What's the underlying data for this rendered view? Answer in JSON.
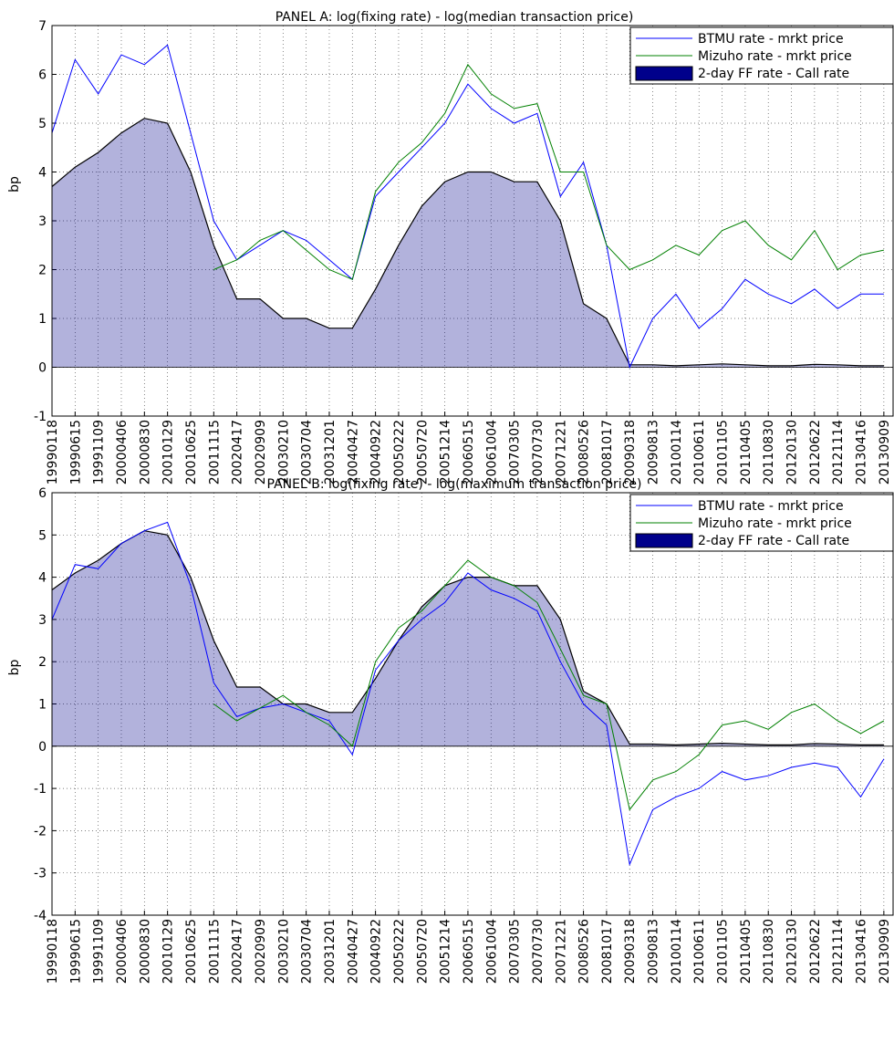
{
  "chart_data": [
    {
      "type": "line",
      "title": "PANEL A:  log(fixing rate) - log(median transaction price)",
      "ylabel": "bp",
      "categories": [
        "19990118",
        "19990615",
        "19991109",
        "20000406",
        "20000830",
        "20010129",
        "20010625",
        "20011115",
        "20020417",
        "20020909",
        "20030210",
        "20030704",
        "20031201",
        "20040427",
        "20040922",
        "20050222",
        "20050720",
        "20051214",
        "20060515",
        "20061004",
        "20070305",
        "20070730",
        "20071221",
        "20080526",
        "20081017",
        "20090318",
        "20090813",
        "20100114",
        "20100611",
        "20101105",
        "20110405",
        "20110830",
        "20120130",
        "20120622",
        "20121114",
        "20130416",
        "20130909"
      ],
      "series": [
        {
          "name": "BTMU rate - mrkt price",
          "color": "#0000ff",
          "style": "line",
          "values": [
            4.8,
            6.3,
            5.6,
            6.4,
            6.2,
            6.6,
            4.8,
            3.0,
            2.2,
            2.5,
            2.8,
            2.6,
            2.2,
            1.8,
            3.5,
            4.0,
            4.5,
            5.0,
            5.8,
            5.3,
            5.0,
            5.2,
            3.5,
            4.2,
            2.5,
            0.0,
            1.0,
            1.5,
            0.8,
            1.2,
            1.8,
            1.5,
            1.3,
            1.6,
            1.2,
            1.5,
            1.5
          ]
        },
        {
          "name": "Mizuho rate - mrkt price",
          "color": "#008000",
          "style": "line",
          "values": [
            null,
            null,
            null,
            null,
            null,
            null,
            null,
            2.0,
            2.2,
            2.6,
            2.8,
            2.4,
            2.0,
            1.8,
            3.6,
            4.2,
            4.6,
            5.2,
            6.2,
            5.6,
            5.3,
            5.4,
            4.0,
            4.0,
            2.5,
            2.0,
            2.2,
            2.5,
            2.3,
            2.8,
            3.0,
            2.5,
            2.2,
            2.8,
            2.0,
            2.3,
            2.4
          ]
        },
        {
          "name": "2-day FF rate - Call rate",
          "color": "#00008b",
          "style": "area",
          "values": [
            3.7,
            4.1,
            4.4,
            4.8,
            5.1,
            5.0,
            4.0,
            2.5,
            1.4,
            1.4,
            1.0,
            1.0,
            0.8,
            0.8,
            1.6,
            2.5,
            3.3,
            3.8,
            4.0,
            4.0,
            3.8,
            3.8,
            3.0,
            1.3,
            1.0,
            0.05,
            0.05,
            0.03,
            0.05,
            0.07,
            0.05,
            0.03,
            0.03,
            0.06,
            0.05,
            0.03,
            0.03
          ]
        }
      ],
      "ylim": [
        -1,
        7
      ],
      "yticks": [
        -1,
        0,
        1,
        2,
        3,
        4,
        5,
        6,
        7
      ],
      "grid": true,
      "legend": "upper right"
    },
    {
      "type": "line",
      "title": "PANEL B:  log(fixing rate) - log(maximum  transaction price)",
      "ylabel": "bp",
      "categories": [
        "19990118",
        "19990615",
        "19991109",
        "20000406",
        "20000830",
        "20010129",
        "20010625",
        "20011115",
        "20020417",
        "20020909",
        "20030210",
        "20030704",
        "20031201",
        "20040427",
        "20040922",
        "20050222",
        "20050720",
        "20051214",
        "20060515",
        "20061004",
        "20070305",
        "20070730",
        "20071221",
        "20080526",
        "20081017",
        "20090318",
        "20090813",
        "20100114",
        "20100611",
        "20101105",
        "20110405",
        "20110830",
        "20120130",
        "20120622",
        "20121114",
        "20130416",
        "20130909"
      ],
      "series": [
        {
          "name": "BTMU rate - mrkt price",
          "color": "#0000ff",
          "style": "line",
          "values": [
            3.0,
            4.3,
            4.2,
            4.8,
            5.1,
            5.3,
            3.8,
            1.5,
            0.7,
            0.9,
            1.0,
            0.8,
            0.6,
            -0.2,
            1.8,
            2.5,
            3.0,
            3.4,
            4.1,
            3.7,
            3.5,
            3.2,
            2.0,
            1.0,
            0.5,
            -2.8,
            -1.5,
            -1.2,
            -1.0,
            -0.6,
            -0.8,
            -0.7,
            -0.5,
            -0.4,
            -0.5,
            -1.2,
            -0.3
          ]
        },
        {
          "name": "Mizuho rate - mrkt price",
          "color": "#008000",
          "style": "line",
          "values": [
            null,
            null,
            null,
            null,
            null,
            null,
            null,
            1.0,
            0.6,
            0.9,
            1.2,
            0.8,
            0.5,
            0.0,
            2.0,
            2.8,
            3.2,
            3.8,
            4.4,
            4.0,
            3.8,
            3.4,
            2.3,
            1.2,
            1.0,
            -1.5,
            -0.8,
            -0.6,
            -0.2,
            0.5,
            0.6,
            0.4,
            0.8,
            1.0,
            0.6,
            0.3,
            0.6
          ]
        },
        {
          "name": "2-day FF rate - Call rate",
          "color": "#00008b",
          "style": "area",
          "values": [
            3.7,
            4.1,
            4.4,
            4.8,
            5.1,
            5.0,
            4.0,
            2.5,
            1.4,
            1.4,
            1.0,
            1.0,
            0.8,
            0.8,
            1.6,
            2.5,
            3.3,
            3.8,
            4.0,
            4.0,
            3.8,
            3.8,
            3.0,
            1.3,
            1.0,
            0.05,
            0.05,
            0.03,
            0.05,
            0.07,
            0.05,
            0.03,
            0.03,
            0.06,
            0.05,
            0.03,
            0.03
          ]
        }
      ],
      "ylim": [
        -4,
        6
      ],
      "yticks": [
        -4,
        -3,
        -2,
        -1,
        0,
        1,
        2,
        3,
        4,
        5,
        6
      ],
      "grid": true,
      "legend": "upper right"
    }
  ]
}
